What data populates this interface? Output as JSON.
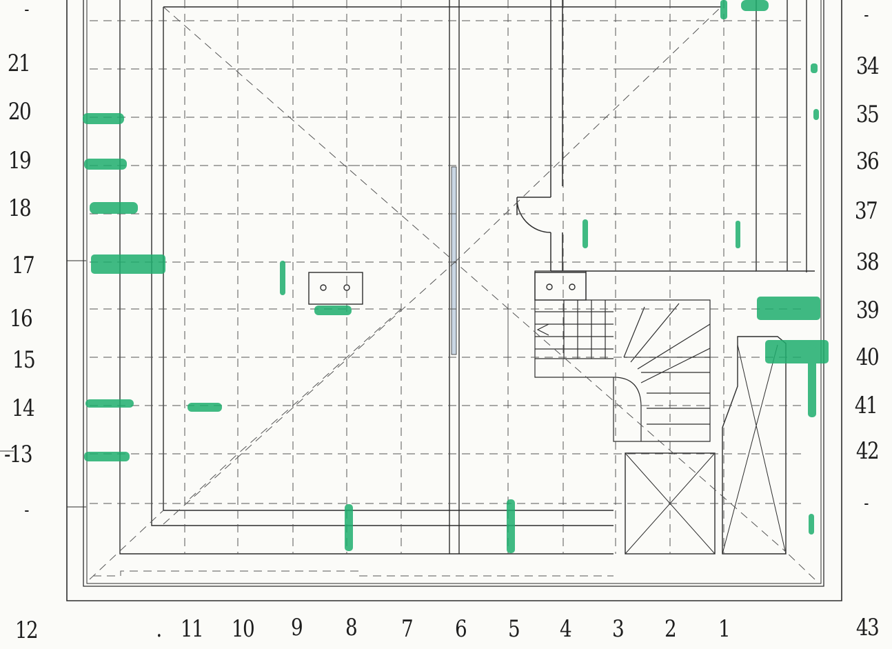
{
  "colors": {
    "ink": "#2c2c2c",
    "dash": "#555555",
    "highlight": "#1fae6e",
    "beam_fill": "#c9d6e3",
    "background": "#fbfbf8"
  },
  "left_labels": {
    "top_dash": "-",
    "r21": "21",
    "r20": "20",
    "r19": "19",
    "r18": "18",
    "r17": "17",
    "r16": "16",
    "r15": "15",
    "r14": "14",
    "r13": "-13",
    "bottom_dash": "-"
  },
  "right_labels": {
    "top_dash": "-",
    "r34": "34",
    "r35": "35",
    "r36": "36",
    "r37": "37",
    "r38": "38",
    "r39": "39",
    "r40": "40",
    "r41": "41",
    "r42": "42",
    "bottom_dash": "-"
  },
  "bottom_labels": {
    "c12": "12",
    "dot": ".",
    "c11": "11",
    "c10": "10",
    "c9": "9",
    "c8": "8",
    "c7": "7",
    "c6": "6",
    "c5": "5",
    "c4": "4",
    "c3": "3",
    "c2": "2",
    "c1": "1",
    "c43": "43"
  }
}
